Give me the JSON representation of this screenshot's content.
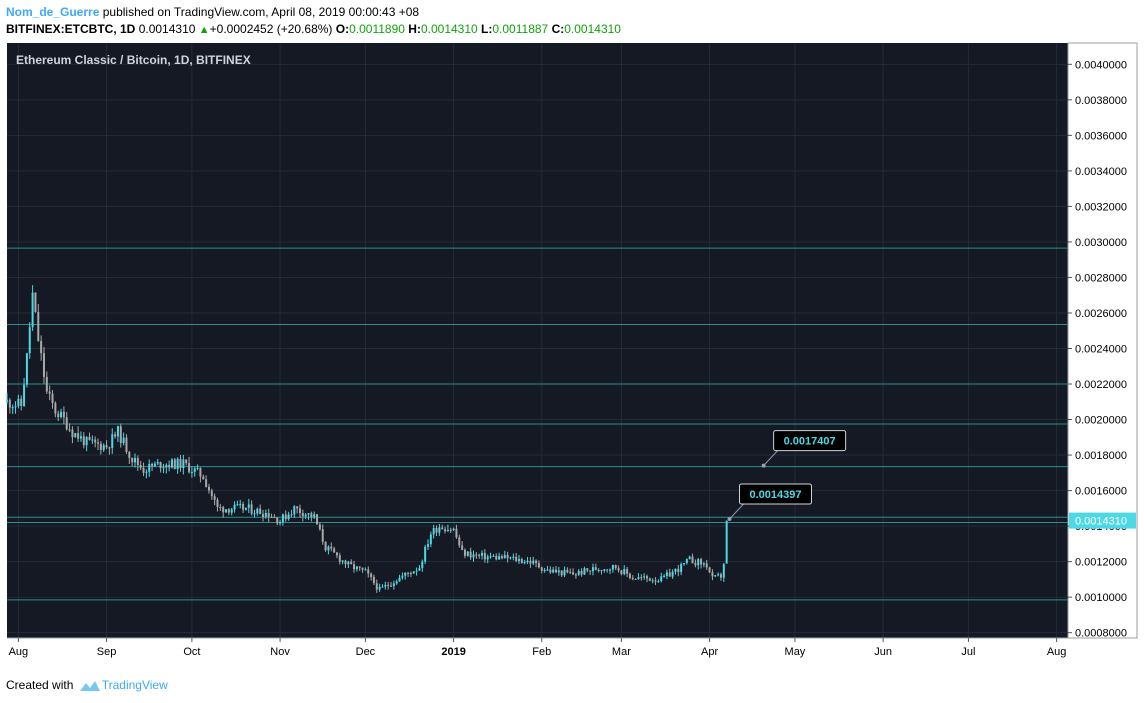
{
  "header": {
    "author": "Nom_de_Guerre",
    "published": "published on TradingView.com, April 08, 2019 00:00:43 +08",
    "symbol": "BITFINEX:ETCBTC, 1D",
    "last": "0.0014310",
    "change": "+0.0002452 (+20.68%)",
    "o_label": "O:",
    "o_value": "0.0011890",
    "h_label": "H:",
    "h_value": "0.0014310",
    "l_label": "L:",
    "l_value": "0.0011887",
    "c_label": "C:",
    "c_value": "0.0014310"
  },
  "footer": {
    "created_with": "Created with",
    "brand": "TradingView"
  },
  "colors": {
    "background": "#151924",
    "grid": "#242a38",
    "up": "#4dd8e6",
    "down": "#a9a9a9",
    "level": "#2c8f8f",
    "axis_text": "#000000",
    "price_tag_bg": "#4dd8e6"
  },
  "chart_data": {
    "type": "candlestick",
    "title": "Ethereum Classic / Bitcoin, 1D, BITFINEX",
    "xlabel": "",
    "ylabel": "",
    "ylim": [
      0.00077,
      0.00412
    ],
    "x_range": [
      "2018-07-28",
      "2019-08-05"
    ],
    "yticks": [
      "0.0008000",
      "0.0010000",
      "0.0012000",
      "0.0014000",
      "0.0016000",
      "0.0018000",
      "0.0020000",
      "0.0022000",
      "0.0024000",
      "0.0026000",
      "0.0028000",
      "0.0030000",
      "0.0032000",
      "0.0034000",
      "0.0036000",
      "0.0038000",
      "0.0040000"
    ],
    "ytick_values": [
      0.0008,
      0.001,
      0.0012,
      0.0014,
      0.0016,
      0.0018,
      0.002,
      0.0022,
      0.0024,
      0.0026,
      0.0028,
      0.003,
      0.0032,
      0.0034,
      0.0036,
      0.0038,
      0.004
    ],
    "xticks": [
      {
        "label": "Aug",
        "date": "2018-08-01"
      },
      {
        "label": "Sep",
        "date": "2018-09-01"
      },
      {
        "label": "Oct",
        "date": "2018-10-01"
      },
      {
        "label": "Nov",
        "date": "2018-11-01"
      },
      {
        "label": "Dec",
        "date": "2018-12-01"
      },
      {
        "label": "2019",
        "date": "2019-01-01"
      },
      {
        "label": "Feb",
        "date": "2019-02-01"
      },
      {
        "label": "Mar",
        "date": "2019-03-01"
      },
      {
        "label": "Apr",
        "date": "2019-04-01"
      },
      {
        "label": "May",
        "date": "2019-05-01"
      },
      {
        "label": "Jun",
        "date": "2019-06-01"
      },
      {
        "label": "Jul",
        "date": "2019-07-01"
      },
      {
        "label": "Aug",
        "date": "2019-08-01"
      }
    ],
    "horizontal_levels": [
      0.002965,
      0.002535,
      0.0022,
      0.001975,
      0.001735,
      0.00145,
      0.00142,
      0.000985
    ],
    "last_price": {
      "value": 0.001431,
      "label": "0.0014310"
    },
    "callouts": [
      {
        "label": "0.0017407",
        "value": 0.0017407,
        "date": "2019-04-20"
      },
      {
        "label": "0.0014397",
        "value": 0.0014397,
        "date": "2019-04-08"
      }
    ],
    "price_path": [
      [
        "2018-07-28",
        0.0021
      ],
      [
        "2018-08-02",
        0.00208
      ],
      [
        "2018-08-04",
        0.00235
      ],
      [
        "2018-08-06",
        0.0027
      ],
      [
        "2018-08-08",
        0.00245
      ],
      [
        "2018-08-11",
        0.00215
      ],
      [
        "2018-08-14",
        0.00205
      ],
      [
        "2018-08-17",
        0.002
      ],
      [
        "2018-08-20",
        0.00193
      ],
      [
        "2018-08-25",
        0.00187
      ],
      [
        "2018-09-01",
        0.00185
      ],
      [
        "2018-09-05",
        0.00193
      ],
      [
        "2018-09-10",
        0.00178
      ],
      [
        "2018-09-14",
        0.00172
      ],
      [
        "2018-09-20",
        0.00175
      ],
      [
        "2018-09-28",
        0.00175
      ],
      [
        "2018-10-05",
        0.00168
      ],
      [
        "2018-10-10",
        0.0015
      ],
      [
        "2018-10-20",
        0.0015
      ],
      [
        "2018-10-28",
        0.00147
      ],
      [
        "2018-11-01",
        0.00143
      ],
      [
        "2018-11-06",
        0.0015
      ],
      [
        "2018-11-13",
        0.00145
      ],
      [
        "2018-11-17",
        0.00128
      ],
      [
        "2018-11-25",
        0.00118
      ],
      [
        "2018-12-01",
        0.00114
      ],
      [
        "2018-12-06",
        0.00104
      ],
      [
        "2018-12-12",
        0.0011
      ],
      [
        "2018-12-20",
        0.00117
      ],
      [
        "2018-12-24",
        0.00136
      ],
      [
        "2018-12-27",
        0.0014
      ],
      [
        "2019-01-01",
        0.00138
      ],
      [
        "2019-01-04",
        0.00125
      ],
      [
        "2019-01-10",
        0.00123
      ],
      [
        "2019-01-20",
        0.00122
      ],
      [
        "2019-01-28",
        0.0012
      ],
      [
        "2019-02-03",
        0.00115
      ],
      [
        "2019-02-12",
        0.00113
      ],
      [
        "2019-02-20",
        0.00116
      ],
      [
        "2019-02-27",
        0.00117
      ],
      [
        "2019-03-05",
        0.00111
      ],
      [
        "2019-03-15",
        0.0011
      ],
      [
        "2019-03-22",
        0.00117
      ],
      [
        "2019-03-25",
        0.00121
      ],
      [
        "2019-03-31",
        0.00118
      ],
      [
        "2019-04-02",
        0.0011
      ],
      [
        "2019-04-05",
        0.00112
      ],
      [
        "2019-04-06",
        0.00119
      ],
      [
        "2019-04-07",
        0.001431
      ]
    ]
  }
}
